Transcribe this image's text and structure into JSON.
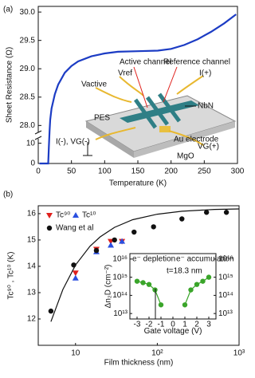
{
  "chart_data": [
    {
      "type": "line",
      "panel_label": "(a)",
      "x_label": "Temperature (K)",
      "y_label": "Sheet Resistance (Ω)",
      "xlim": [
        0,
        300
      ],
      "xticks": [
        0,
        50,
        100,
        150,
        200,
        250,
        300
      ],
      "ylim": [
        27.85,
        30.1
      ],
      "yticks": [
        {
          "value": 28,
          "label": "28.0"
        },
        {
          "value": 28.5,
          "label": "28.5"
        },
        {
          "value": 29,
          "label": "29.0"
        },
        {
          "value": 29.5,
          "label": "29.5"
        },
        {
          "value": 30,
          "label": "30.0"
        }
      ],
      "ylim_lower": [
        0,
        13
      ],
      "yticks_lower": [
        0,
        10
      ],
      "axis_break": true,
      "series": [
        {
          "color": "#1c3cc4",
          "x": [
            2,
            10,
            15,
            16,
            17,
            18,
            20,
            25,
            30,
            40,
            50,
            60,
            80,
            100,
            120,
            150,
            180,
            200,
            220,
            240,
            260,
            280,
            298
          ],
          "values": [
            0,
            0,
            0,
            8,
            27.9,
            28.1,
            28.3,
            28.55,
            28.72,
            28.93,
            29.05,
            29.13,
            29.22,
            29.27,
            29.3,
            29.31,
            29.32,
            29.35,
            29.42,
            29.52,
            29.65,
            29.8,
            29.96
          ]
        }
      ]
    },
    {
      "type": "scatter",
      "panel_label": "(b)",
      "x_label": "Film thickness (nm)",
      "y_label": "Tc⁹⁰ , Tc¹⁰ (K)",
      "log_x": true,
      "xlim": [
        3.5,
        1000
      ],
      "xticks": [
        10,
        {
          "value": 100,
          "label": "10²"
        },
        {
          "value": 1000,
          "label": "10³"
        }
      ],
      "ylim": [
        11,
        16.3
      ],
      "yticks": [
        12,
        13,
        14,
        15,
        16
      ],
      "legend": "upper left",
      "series": [
        {
          "name": "Tc⁹⁰",
          "color": "#e0201c",
          "marker": "triangle-down",
          "x": [
            10,
            18,
            27,
            37
          ],
          "values": [
            13.75,
            14.65,
            14.95,
            14.95
          ]
        },
        {
          "name": "Tc¹⁰",
          "color": "#2a4fe0",
          "marker": "triangle-up",
          "x": [
            10,
            18,
            27,
            37
          ],
          "values": [
            13.55,
            14.55,
            14.8,
            14.95
          ]
        },
        {
          "name": "Wang et al",
          "color": "#111111",
          "marker": "circle",
          "x": [
            5,
            9.5,
            18,
            30,
            52,
            90,
            200,
            400,
            700
          ],
          "values": [
            12.3,
            14.05,
            14.6,
            15,
            15.3,
            15.5,
            15.8,
            16.05,
            16.05
          ]
        },
        {
          "color": "#111111",
          "marker": "line",
          "x": [
            5,
            7,
            10,
            15,
            20,
            30,
            50,
            100,
            200,
            500,
            1000
          ],
          "values": [
            11.9,
            13.12,
            14.05,
            14.76,
            15.12,
            15.48,
            15.77,
            15.98,
            16.09,
            16.16,
            16.18
          ]
        }
      ]
    },
    {
      "type": "scatter",
      "x_label": "Gate voltage (V)",
      "y_label": "Δn₂D (cm⁻²)",
      "log_y": true,
      "xlim": [
        -3.6,
        3.6
      ],
      "xticks": [
        -3,
        -2,
        -1,
        0,
        1,
        2,
        3
      ],
      "ylim": [
        5000000000000.0,
        2e+16
      ],
      "yticks": [
        {
          "value": 10000000000000.0,
          "label": "10¹³"
        },
        {
          "value": 100000000000000.0,
          "label": "10¹⁴"
        },
        {
          "value": 1000000000000000.0,
          "label": "10¹⁵"
        },
        {
          "value": 1e+16,
          "label": "10¹⁶"
        }
      ],
      "annotations": [
        "e⁻ depletion",
        "e⁻ accumulation",
        "t=18.3 nm"
      ],
      "series": [
        {
          "color": "#3aa52a",
          "x": [
            -3,
            -2.5,
            -2,
            -1.5,
            -1
          ],
          "values": [
            600000000000000.0,
            500000000000000.0,
            400000000000000.0,
            200000000000000.0,
            30000000000000.0
          ]
        },
        {
          "color": "#3aa52a",
          "x": [
            1,
            1.5,
            2,
            2.5,
            3
          ],
          "values": [
            30000000000000.0,
            200000000000000.0,
            400000000000000.0,
            600000000000000.0,
            1000000000000000.0
          ]
        }
      ]
    }
  ],
  "schematic": {
    "labels": [
      "Active channel",
      "Reference channel",
      "Vref",
      "Vactive",
      "I(+)",
      "NbN",
      "PES",
      "Au electrode",
      "VG(+)",
      "I(-), VG(-)",
      "MgO"
    ]
  }
}
